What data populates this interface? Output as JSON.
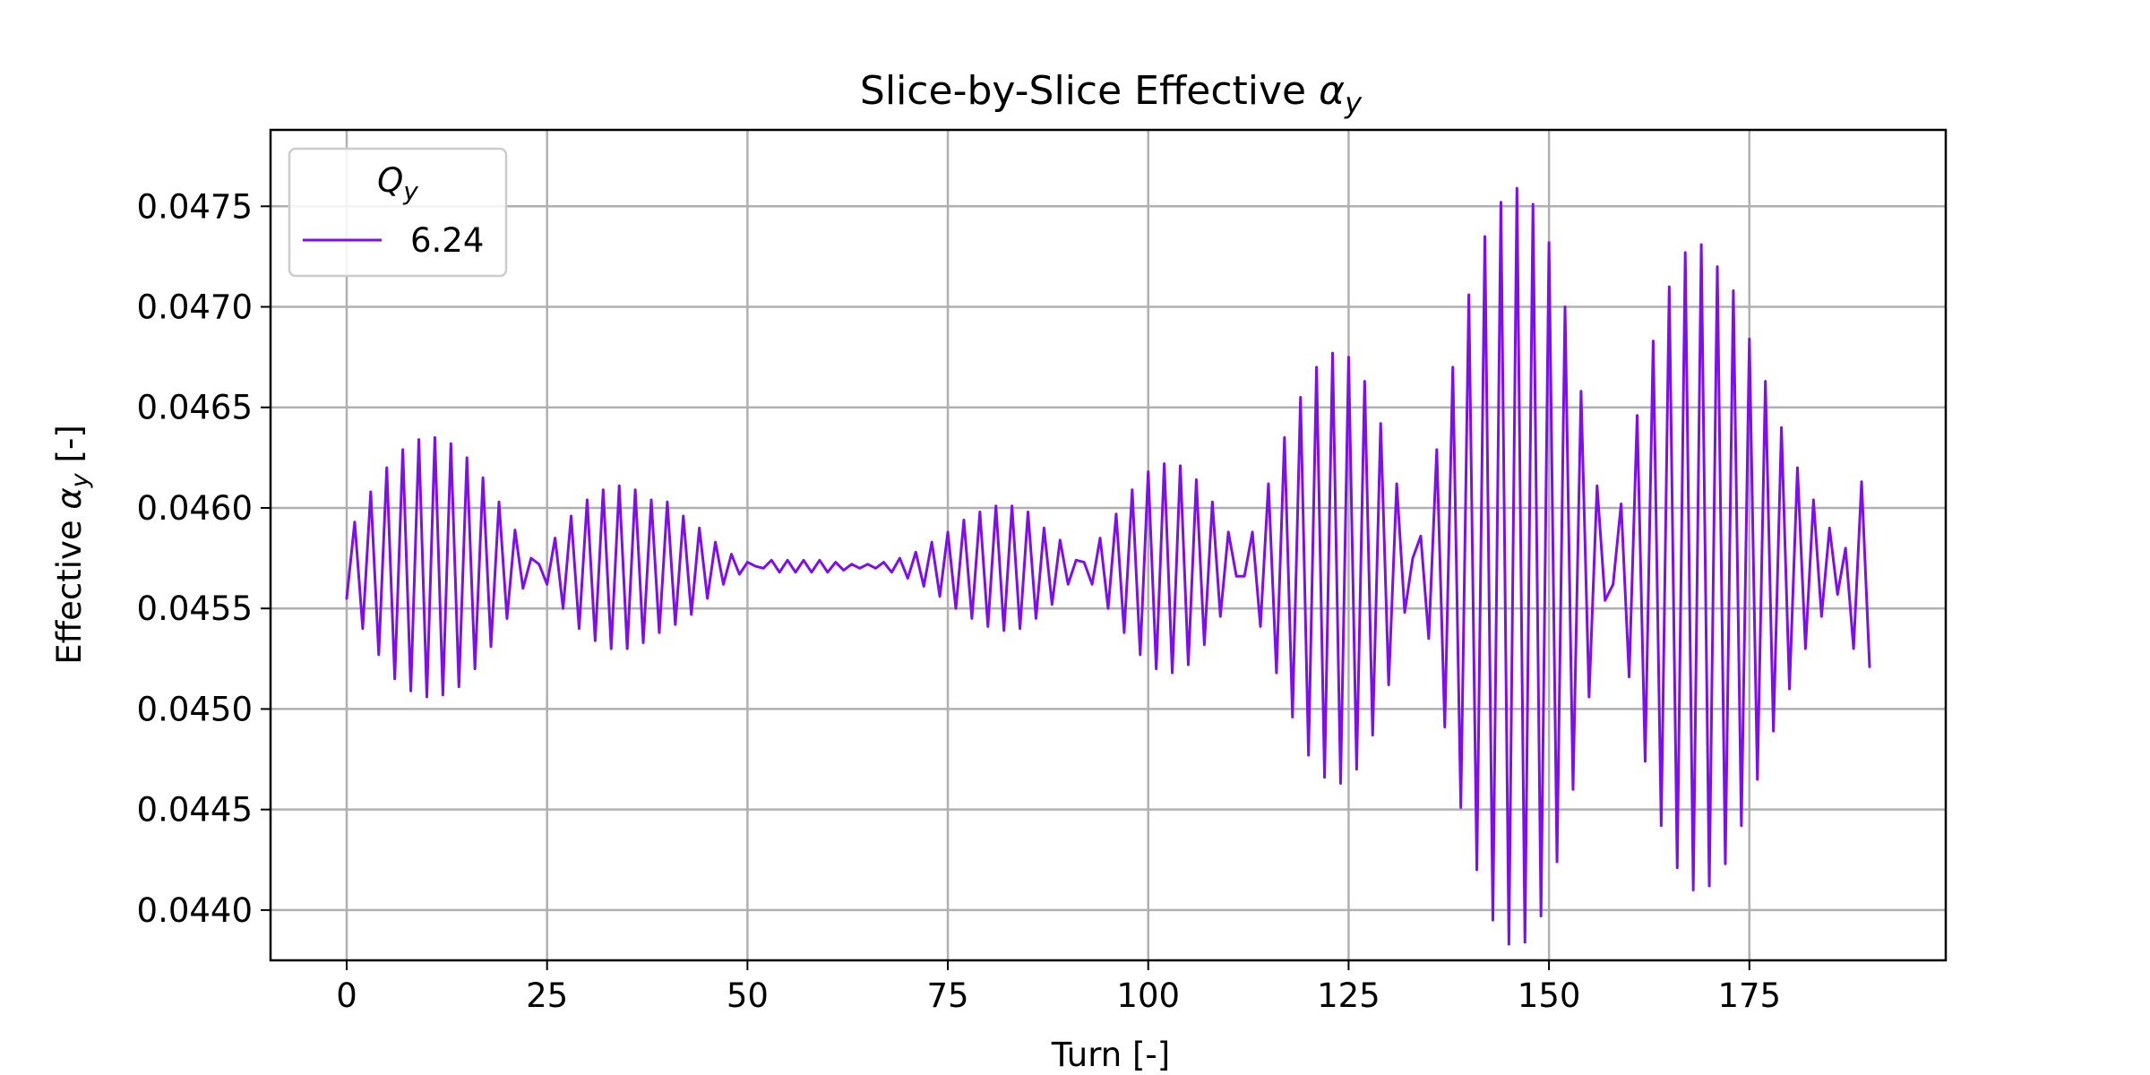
{
  "chart_data": {
    "type": "line",
    "title_prefix": "Slice-by-Slice Effective",
    "title_symbol": "α",
    "title_subscript": "y",
    "xlabel": "Turn [-]",
    "ylabel_prefix": "Effective",
    "ylabel_symbol": "α",
    "ylabel_subscript": "y",
    "ylabel_suffix": "[-]",
    "xlim": [
      -9.5,
      199.5
    ],
    "ylim": [
      0.04375,
      0.04788
    ],
    "x_ticks": [
      0,
      25,
      50,
      75,
      100,
      125,
      150,
      175
    ],
    "x_tick_labels": [
      "0",
      "25",
      "50",
      "75",
      "100",
      "125",
      "150",
      "175"
    ],
    "y_ticks": [
      0.044,
      0.0445,
      0.045,
      0.0455,
      0.046,
      0.0465,
      0.047,
      0.0475
    ],
    "y_tick_labels": [
      "0.0440",
      "0.0445",
      "0.0450",
      "0.0455",
      "0.0460",
      "0.0465",
      "0.0470",
      "0.0475"
    ],
    "grid": true,
    "legend": {
      "placement": "top-left",
      "title_symbol": "Q",
      "title_subscript": "y",
      "entries": [
        "6.24"
      ]
    },
    "series": [
      {
        "name": "6.24",
        "color": "#7f0df0",
        "x_start": 0,
        "x_step": 1,
        "values": [
          0.04555,
          0.04593,
          0.0454,
          0.04608,
          0.04527,
          0.0462,
          0.04515,
          0.04629,
          0.04509,
          0.04634,
          0.04506,
          0.04635,
          0.04507,
          0.04632,
          0.04511,
          0.04625,
          0.0452,
          0.04615,
          0.04531,
          0.04603,
          0.04545,
          0.04589,
          0.0456,
          0.04575,
          0.04572,
          0.04562,
          0.04585,
          0.0455,
          0.04596,
          0.0454,
          0.04604,
          0.04534,
          0.04609,
          0.0453,
          0.04611,
          0.0453,
          0.04609,
          0.04533,
          0.04604,
          0.04538,
          0.04603,
          0.04542,
          0.04596,
          0.04547,
          0.0459,
          0.04555,
          0.04583,
          0.04562,
          0.04577,
          0.04567,
          0.04573,
          0.04571,
          0.0457,
          0.04574,
          0.04568,
          0.04574,
          0.04568,
          0.04574,
          0.04568,
          0.04574,
          0.04568,
          0.04573,
          0.04569,
          0.04572,
          0.0457,
          0.04572,
          0.0457,
          0.04573,
          0.04568,
          0.04575,
          0.04565,
          0.04578,
          0.04561,
          0.04583,
          0.04556,
          0.04588,
          0.0455,
          0.04594,
          0.04545,
          0.04598,
          0.04541,
          0.04601,
          0.04539,
          0.04601,
          0.0454,
          0.04598,
          0.04545,
          0.0459,
          0.04552,
          0.04584,
          0.04562,
          0.04574,
          0.04573,
          0.04562,
          0.04585,
          0.0455,
          0.04597,
          0.04538,
          0.04609,
          0.04527,
          0.04618,
          0.0452,
          0.04622,
          0.04518,
          0.04621,
          0.04522,
          0.04614,
          0.04532,
          0.04603,
          0.04546,
          0.04588,
          0.04566,
          0.04566,
          0.04588,
          0.04541,
          0.04612,
          0.04518,
          0.04635,
          0.04496,
          0.04655,
          0.04477,
          0.0467,
          0.04466,
          0.04677,
          0.04463,
          0.04675,
          0.0447,
          0.04663,
          0.04487,
          0.04642,
          0.04512,
          0.04612,
          0.04548,
          0.04575,
          0.04586,
          0.04535,
          0.04629,
          0.04491,
          0.0467,
          0.04451,
          0.04706,
          0.0442,
          0.04735,
          0.04395,
          0.04752,
          0.04383,
          0.04759,
          0.04384,
          0.04751,
          0.04397,
          0.04732,
          0.04424,
          0.047,
          0.0446,
          0.04658,
          0.04506,
          0.04611,
          0.04554,
          0.04562,
          0.04602,
          0.04516,
          0.04646,
          0.04474,
          0.04683,
          0.04442,
          0.0471,
          0.04421,
          0.04727,
          0.0441,
          0.04731,
          0.04412,
          0.0472,
          0.04423,
          0.04708,
          0.04442,
          0.04684,
          0.04465,
          0.04663,
          0.04489,
          0.0464,
          0.0451,
          0.0462,
          0.0453,
          0.04604,
          0.04546,
          0.0459,
          0.04557,
          0.0458,
          0.0453,
          0.04613,
          0.04521
        ]
      }
    ]
  }
}
